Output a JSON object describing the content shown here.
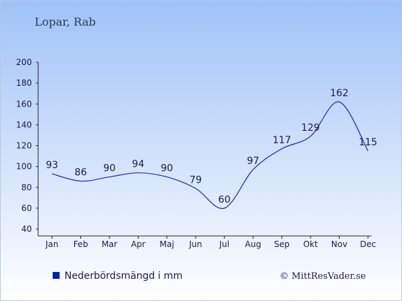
{
  "location_title": "Lopar, Rab",
  "legend_label": "Nederbördsmängd i mm",
  "copyright": "© MittResVader.se",
  "colors": {
    "line": "#1a2a9e",
    "legend_swatch": "#0a22a8",
    "bg_top": "#9fc2f7",
    "bg_bottom": "#ffffff",
    "text": "#1a1a4a",
    "title": "#2a3a5a"
  },
  "chart_data": {
    "type": "line",
    "categories": [
      "Jan",
      "Feb",
      "Mar",
      "Apr",
      "Maj",
      "Jun",
      "Jul",
      "Aug",
      "Sep",
      "Okt",
      "Nov",
      "Dec"
    ],
    "series": [
      {
        "name": "Nederbördsmängd i mm",
        "values": [
          93,
          86,
          90,
          94,
          90,
          79,
          60,
          97,
          117,
          129,
          162,
          115
        ]
      }
    ],
    "ylim": [
      40,
      200
    ],
    "yticks": [
      40,
      60,
      80,
      100,
      120,
      140,
      160,
      180,
      200
    ],
    "grid": false,
    "data_labels": true,
    "legend_position": "bottom-left"
  }
}
